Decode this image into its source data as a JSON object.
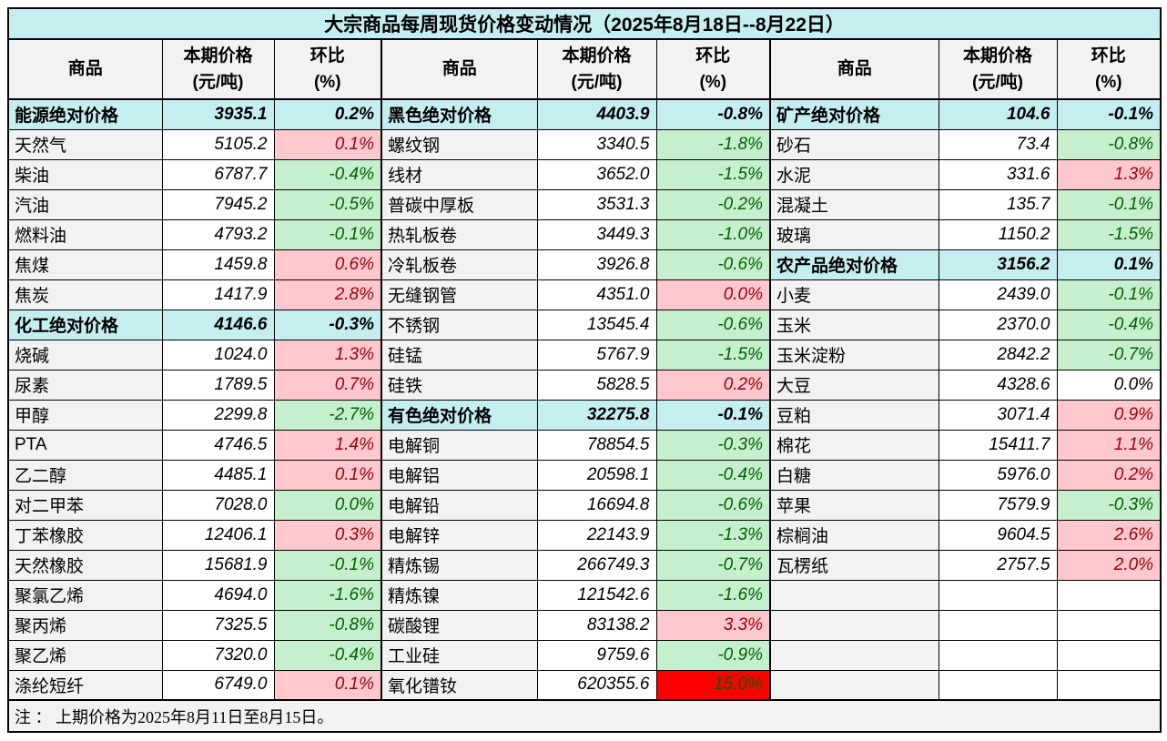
{
  "title": "大宗商品每周现货价格变动情况（2025年8月18日--8月22日）",
  "note": "注 ： 上期价格为2025年8月11日至8月15日。",
  "headers": {
    "commodity": "商品",
    "price_line1": "本期价格",
    "price_line2": "(元/吨)",
    "pct_line1": "环比",
    "pct_line2": "(%)"
  },
  "colors": {
    "title_bg": "#C5EEF1",
    "section_bg": "#C5EEF1",
    "header_bg": "#F2F2F2",
    "name_bg": "#F2F2F2",
    "up_bg": "#FFC7CE",
    "up_text": "#9C0006",
    "down_bg": "#C6EFCE",
    "down_text": "#006100",
    "alert_bg": "#FF0000",
    "alert_text": "#006100",
    "border": "#000000"
  },
  "groups": [
    {
      "rows": [
        {
          "name": "能源绝对价格",
          "price": "3935.1",
          "pct": "0.2%",
          "kind": "section"
        },
        {
          "name": "天然气",
          "price": "5105.2",
          "pct": "0.1%",
          "kind": "up"
        },
        {
          "name": "柴油",
          "price": "6787.7",
          "pct": "-0.4%",
          "kind": "down"
        },
        {
          "name": "汽油",
          "price": "7945.2",
          "pct": "-0.5%",
          "kind": "down"
        },
        {
          "name": "燃料油",
          "price": "4793.2",
          "pct": "-0.1%",
          "kind": "down"
        },
        {
          "name": "焦煤",
          "price": "1459.8",
          "pct": "0.6%",
          "kind": "up"
        },
        {
          "name": "焦炭",
          "price": "1417.9",
          "pct": "2.8%",
          "kind": "up"
        },
        {
          "name": "化工绝对价格",
          "price": "4146.6",
          "pct": "-0.3%",
          "kind": "section"
        },
        {
          "name": "烧碱",
          "price": "1024.0",
          "pct": "1.3%",
          "kind": "up"
        },
        {
          "name": "尿素",
          "price": "1789.5",
          "pct": "0.7%",
          "kind": "up"
        },
        {
          "name": "甲醇",
          "price": "2299.8",
          "pct": "-2.7%",
          "kind": "down"
        },
        {
          "name": "PTA",
          "price": "4746.5",
          "pct": "1.4%",
          "kind": "up"
        },
        {
          "name": "乙二醇",
          "price": "4485.1",
          "pct": "0.1%",
          "kind": "up"
        },
        {
          "name": "对二甲苯",
          "price": "7028.0",
          "pct": "0.0%",
          "kind": "down"
        },
        {
          "name": "丁苯橡胶",
          "price": "12406.1",
          "pct": "0.3%",
          "kind": "up"
        },
        {
          "name": "天然橡胶",
          "price": "15681.9",
          "pct": "-0.1%",
          "kind": "down"
        },
        {
          "name": "聚氯乙烯",
          "price": "4694.0",
          "pct": "-1.6%",
          "kind": "down"
        },
        {
          "name": "聚丙烯",
          "price": "7325.5",
          "pct": "-0.8%",
          "kind": "down"
        },
        {
          "name": "聚乙烯",
          "price": "7320.0",
          "pct": "-0.4%",
          "kind": "down"
        },
        {
          "name": "涤纶短纤",
          "price": "6749.0",
          "pct": "0.1%",
          "kind": "up"
        }
      ]
    },
    {
      "rows": [
        {
          "name": "黑色绝对价格",
          "price": "4403.9",
          "pct": "-0.8%",
          "kind": "section"
        },
        {
          "name": "螺纹钢",
          "price": "3340.5",
          "pct": "-1.8%",
          "kind": "down"
        },
        {
          "name": "线材",
          "price": "3652.0",
          "pct": "-1.5%",
          "kind": "down"
        },
        {
          "name": "普碳中厚板",
          "price": "3531.3",
          "pct": "-0.2%",
          "kind": "down"
        },
        {
          "name": "热轧板卷",
          "price": "3449.3",
          "pct": "-1.0%",
          "kind": "down"
        },
        {
          "name": "冷轧板卷",
          "price": "3926.8",
          "pct": "-0.6%",
          "kind": "down"
        },
        {
          "name": "无缝钢管",
          "price": "4351.0",
          "pct": "0.0%",
          "kind": "up"
        },
        {
          "name": "不锈钢",
          "price": "13545.4",
          "pct": "-0.6%",
          "kind": "down"
        },
        {
          "name": "硅锰",
          "price": "5767.9",
          "pct": "-1.5%",
          "kind": "down"
        },
        {
          "name": "硅铁",
          "price": "5828.5",
          "pct": "0.2%",
          "kind": "up"
        },
        {
          "name": "有色绝对价格",
          "price": "32275.8",
          "pct": "-0.1%",
          "kind": "section"
        },
        {
          "name": "电解铜",
          "price": "78854.5",
          "pct": "-0.3%",
          "kind": "down"
        },
        {
          "name": "电解铝",
          "price": "20598.1",
          "pct": "-0.4%",
          "kind": "down"
        },
        {
          "name": "电解铅",
          "price": "16694.8",
          "pct": "-0.6%",
          "kind": "down"
        },
        {
          "name": "电解锌",
          "price": "22143.9",
          "pct": "-1.3%",
          "kind": "down"
        },
        {
          "name": "精炼锡",
          "price": "266749.3",
          "pct": "-0.7%",
          "kind": "down"
        },
        {
          "name": "精炼镍",
          "price": "121542.6",
          "pct": "-1.6%",
          "kind": "down"
        },
        {
          "name": "碳酸锂",
          "price": "83138.2",
          "pct": "3.3%",
          "kind": "up"
        },
        {
          "name": "工业硅",
          "price": "9759.6",
          "pct": "-0.9%",
          "kind": "down"
        },
        {
          "name": "氧化镨钕",
          "price": "620355.6",
          "pct": "15.0%",
          "kind": "alert"
        }
      ]
    },
    {
      "rows": [
        {
          "name": "矿产绝对价格",
          "price": "104.6",
          "pct": "-0.1%",
          "kind": "section"
        },
        {
          "name": "砂石",
          "price": "73.4",
          "pct": "-0.8%",
          "kind": "down"
        },
        {
          "name": "水泥",
          "price": "331.6",
          "pct": "1.3%",
          "kind": "up"
        },
        {
          "name": "混凝土",
          "price": "135.7",
          "pct": "-0.1%",
          "kind": "down"
        },
        {
          "name": "玻璃",
          "price": "1150.2",
          "pct": "-1.5%",
          "kind": "down"
        },
        {
          "name": "农产品绝对价格",
          "price": "3156.2",
          "pct": "0.1%",
          "kind": "section"
        },
        {
          "name": "小麦",
          "price": "2439.0",
          "pct": "-0.1%",
          "kind": "down"
        },
        {
          "name": "玉米",
          "price": "2370.0",
          "pct": "-0.4%",
          "kind": "down"
        },
        {
          "name": "玉米淀粉",
          "price": "2842.2",
          "pct": "-0.7%",
          "kind": "down"
        },
        {
          "name": "大豆",
          "price": "4328.6",
          "pct": "0.0%",
          "kind": "flat"
        },
        {
          "name": "豆粕",
          "price": "3071.4",
          "pct": "0.9%",
          "kind": "up"
        },
        {
          "name": "棉花",
          "price": "15411.7",
          "pct": "1.1%",
          "kind": "up"
        },
        {
          "name": "白糖",
          "price": "5976.0",
          "pct": "0.2%",
          "kind": "up"
        },
        {
          "name": "苹果",
          "price": "7579.9",
          "pct": "-0.3%",
          "kind": "down"
        },
        {
          "name": "棕榈油",
          "price": "9604.5",
          "pct": "2.6%",
          "kind": "up"
        },
        {
          "name": "瓦楞纸",
          "price": "2757.5",
          "pct": "2.0%",
          "kind": "up"
        },
        {
          "name": "",
          "price": "",
          "pct": "",
          "kind": "empty"
        },
        {
          "name": "",
          "price": "",
          "pct": "",
          "kind": "empty"
        },
        {
          "name": "",
          "price": "",
          "pct": "",
          "kind": "empty"
        },
        {
          "name": "",
          "price": "",
          "pct": "",
          "kind": "empty"
        }
      ]
    }
  ]
}
